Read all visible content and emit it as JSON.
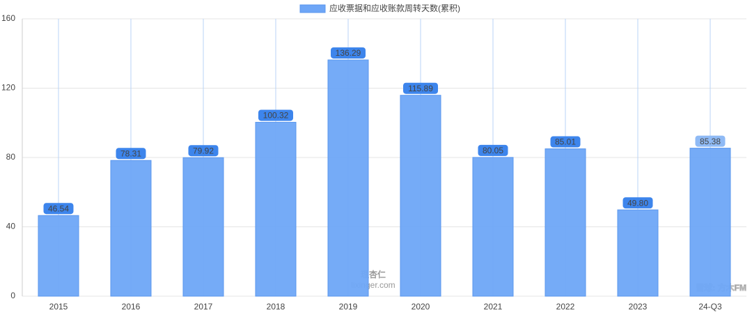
{
  "chart_data": {
    "type": "bar",
    "categories": [
      "2015",
      "2016",
      "2017",
      "2018",
      "2019",
      "2020",
      "2021",
      "2022",
      "2023",
      "24-Q3"
    ],
    "series": [
      {
        "name": "应收票据和应收账款周转天数(累积)",
        "color": "#6ea6f7",
        "values": [
          46.54,
          78.31,
          79.92,
          100.32,
          136.29,
          115.89,
          80.05,
          85.01,
          49.8,
          85.38
        ],
        "value_labels": [
          "46.54",
          "78.31",
          "79.92",
          "100.32",
          "136.29",
          "115.89",
          "80.05",
          "85.01",
          "49.80",
          "85.38"
        ]
      }
    ],
    "ylim": [
      0,
      160
    ],
    "yticks": [
      0,
      40,
      80,
      120,
      160
    ],
    "grid": true,
    "watermarks": [
      "理杏仁",
      "lixinger.com",
      "雪球: 方木FM"
    ]
  }
}
